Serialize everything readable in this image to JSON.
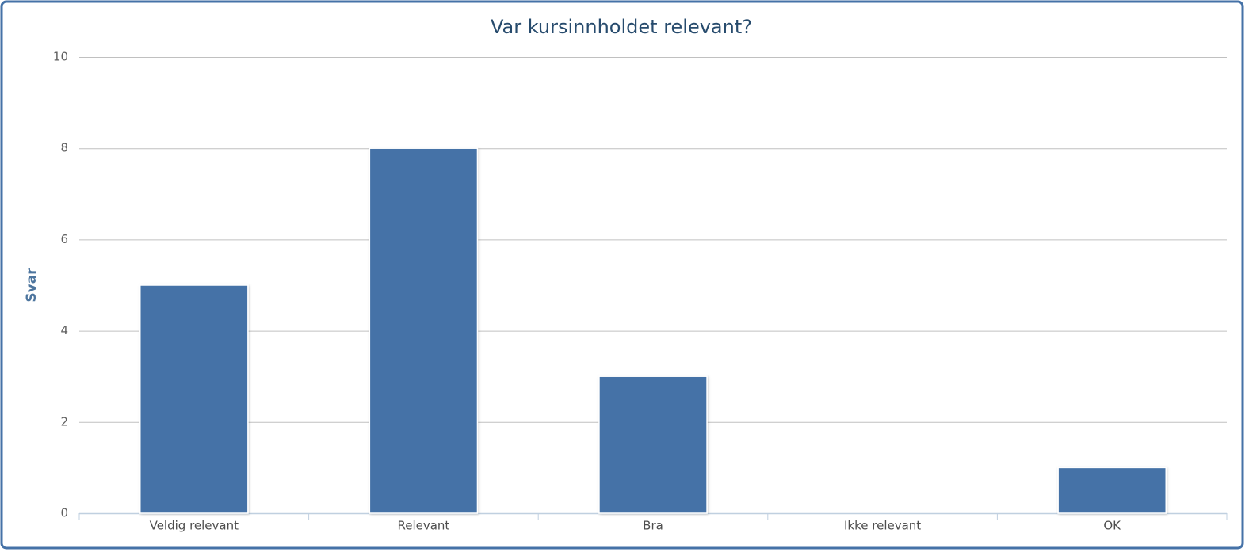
{
  "chart_data": {
    "type": "bar",
    "title": "Var kursinnholdet relevant?",
    "y_label": "Svar",
    "categories": [
      "Veldig relevant",
      "Relevant",
      "Bra",
      "Ikke relevant",
      "OK"
    ],
    "values": [
      5,
      8,
      3,
      0,
      1
    ],
    "color": "#4572a7",
    "ylim": [
      0,
      10
    ],
    "yticks": [
      0,
      2,
      4,
      6,
      8,
      10
    ],
    "grid": true
  }
}
